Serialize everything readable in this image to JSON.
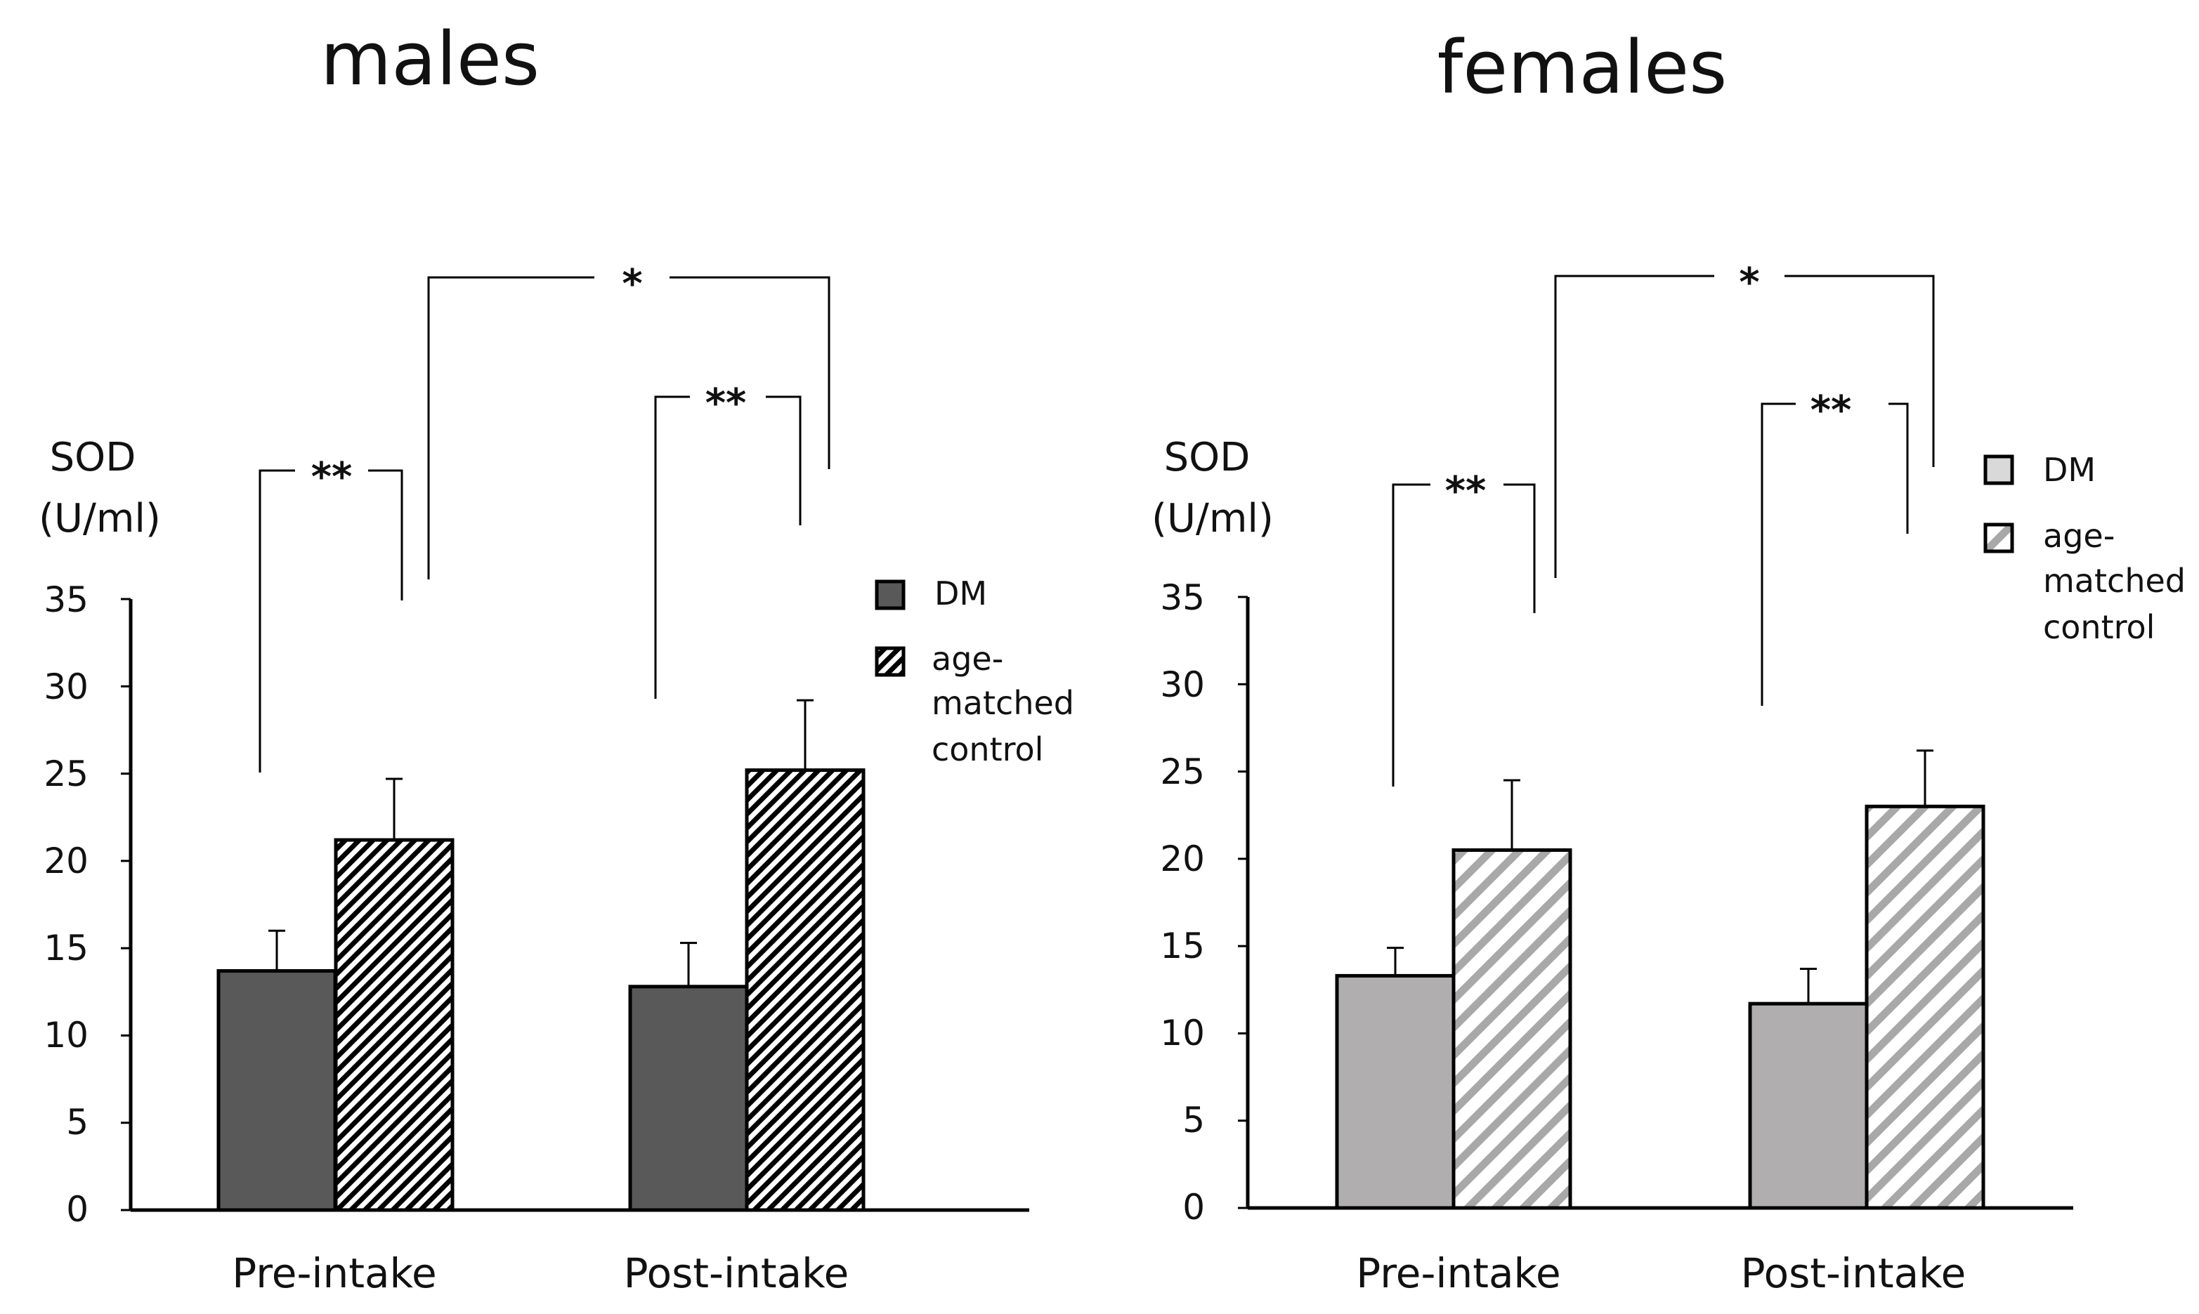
{
  "chart_data": [
    {
      "type": "bar",
      "title": "males",
      "ylabel_line1": "SOD",
      "ylabel_line2": "(U/ml)",
      "categories": [
        "Pre-intake",
        "Post-intake"
      ],
      "ylim": [
        0,
        35
      ],
      "yticks": [
        0,
        5,
        10,
        15,
        20,
        25,
        30,
        35
      ],
      "series": [
        {
          "name": "DM",
          "values": [
            13.7,
            12.8
          ],
          "errors": [
            2.3,
            2.5
          ],
          "fill": "#595959",
          "pattern": "solid"
        },
        {
          "name": "age-matched control",
          "values": [
            21.2,
            25.2
          ],
          "errors": [
            3.5,
            4.0
          ],
          "fill": "#000000",
          "pattern": "hatch"
        }
      ],
      "legend": {
        "placement": "right",
        "entries": [
          [
            "DM"
          ],
          [
            "age-",
            "matched",
            "control"
          ]
        ]
      },
      "significance": [
        {
          "label": "**",
          "comparison": "Pre-intake DM vs control"
        },
        {
          "label": "**",
          "comparison": "Post-intake DM vs control"
        },
        {
          "label": "*",
          "comparison": "Pre-intake vs Post-intake control"
        }
      ]
    },
    {
      "type": "bar",
      "title": "females",
      "ylabel_line1": "SOD",
      "ylabel_line2": "(U/ml)",
      "categories": [
        "Pre-intake",
        "Post-intake"
      ],
      "ylim": [
        0,
        35
      ],
      "yticks": [
        0,
        5,
        10,
        15,
        20,
        25,
        30,
        35
      ],
      "series": [
        {
          "name": "DM",
          "values": [
            13.3,
            11.7
          ],
          "errors": [
            1.6,
            2.0
          ],
          "fill": "#b0aeae",
          "pattern": "solid"
        },
        {
          "name": "age-matched control",
          "values": [
            20.5,
            23.0
          ],
          "errors": [
            4.0,
            3.2
          ],
          "fill": "#a8a8a8",
          "pattern": "hatch"
        }
      ],
      "legend": {
        "placement": "top-right",
        "entries": [
          [
            "DM"
          ],
          [
            "age-",
            "matched",
            "control"
          ]
        ]
      },
      "significance": [
        {
          "label": "**",
          "comparison": "Pre-intake DM vs control"
        },
        {
          "label": "**",
          "comparison": "Post-intake DM vs control"
        },
        {
          "label": "*",
          "comparison": "Pre-intake vs Post-intake control"
        }
      ]
    }
  ]
}
